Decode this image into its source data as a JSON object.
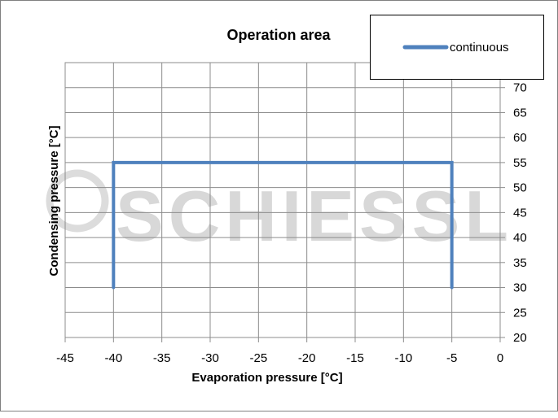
{
  "chart_data": {
    "type": "line",
    "title": "Operation area",
    "xlabel": "Evaporation pressure [°C]",
    "ylabel": "Condensing pressure [°C]",
    "xlim": [
      -45,
      0
    ],
    "ylim": [
      20,
      75
    ],
    "x_ticks": [
      -45,
      -40,
      -35,
      -30,
      -25,
      -20,
      -15,
      -10,
      -5,
      0
    ],
    "y_ticks": [
      20,
      25,
      30,
      35,
      40,
      45,
      50,
      55,
      60,
      65,
      70
    ],
    "grid": true,
    "y_axis_side": "right",
    "legend_position": "top-right",
    "series": [
      {
        "name": "continuous",
        "color": "#4f81bd",
        "points": [
          [
            -40,
            30
          ],
          [
            -40,
            55
          ],
          [
            -5,
            55
          ],
          [
            -5,
            30
          ]
        ]
      }
    ],
    "watermark": "SCHIESSL"
  }
}
